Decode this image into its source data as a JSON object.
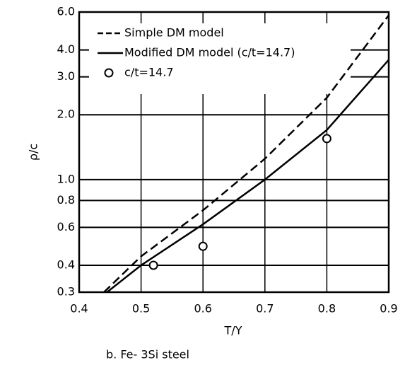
{
  "chart_data": {
    "type": "line",
    "caption": "b. Fe- 3Si steel",
    "xlabel": "T/Y",
    "ylabel": "ρ/c",
    "xlim": [
      0.4,
      0.9
    ],
    "xticks": [
      0.4,
      0.5,
      0.6,
      0.7,
      0.8,
      0.9
    ],
    "ylim": [
      0.3,
      6
    ],
    "ylog": true,
    "yticks": [
      0.3,
      0.4,
      0.6,
      0.8,
      {
        "value": 1,
        "label": "1.0"
      },
      {
        "value": 2,
        "label": "2.0"
      },
      {
        "value": 3,
        "label": "3.0"
      },
      {
        "value": 4,
        "label": "4.0"
      },
      {
        "value": 6,
        "label": "6.0"
      }
    ],
    "grid": true,
    "legend": "upper left",
    "series": [
      {
        "name": "Simple DM model",
        "color": "#000000",
        "style": "dashed",
        "mode": "line",
        "x": [
          0.44,
          0.5,
          0.6,
          0.7,
          0.8,
          0.9
        ],
        "values": [
          0.3,
          0.44,
          0.72,
          1.25,
          2.4,
          5.8
        ]
      },
      {
        "name": "Modified DM model (c/t=14.7)",
        "color": "#000000",
        "style": "solid",
        "mode": "line",
        "x": [
          0.445,
          0.5,
          0.6,
          0.7,
          0.8,
          0.9
        ],
        "values": [
          0.3,
          0.4,
          0.62,
          1.0,
          1.7,
          3.6
        ]
      },
      {
        "name": "c/t=14.7",
        "color": "#000000",
        "style": "solid",
        "mode": "markers",
        "x": [
          0.52,
          0.6,
          0.8
        ],
        "values": [
          0.4,
          0.49,
          1.55
        ]
      }
    ]
  }
}
